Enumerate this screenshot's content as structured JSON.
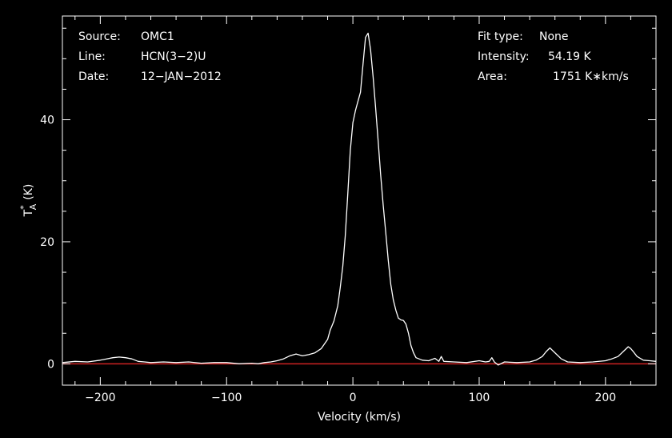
{
  "info_left": {
    "source_label": "Source:",
    "source_value": "OMC1",
    "line_label": "Line:",
    "line_value": "HCN(3−2)U",
    "date_label": "Date:",
    "date_value": "12−JAN−2012"
  },
  "info_right": {
    "fit_label": "Fit type:",
    "fit_value": "None",
    "intensity_label": "Intensity:",
    "intensity_value": "54.19 K",
    "area_label": "Area:",
    "area_value": "1751 K∗km/s"
  },
  "colors": {
    "background": "#000000",
    "foreground": "#ffffff",
    "baseline": "#cc2222"
  },
  "chart_data": {
    "type": "line",
    "xlabel": "Velocity (km/s)",
    "ylabel_main": "T",
    "ylabel_super": "*",
    "ylabel_sub": "A",
    "ylabel_unit": "(K)",
    "xlim": [
      -230,
      240
    ],
    "ylim": [
      -3.5,
      57
    ],
    "xticks": [
      -200,
      -100,
      0,
      100,
      200
    ],
    "xtick_labels": [
      "−200",
      "−100",
      "0",
      "100",
      "200"
    ],
    "yticks": [
      0,
      20,
      40
    ],
    "ytick_labels": [
      "0",
      "20",
      "40"
    ],
    "baseline_y": 0,
    "series": [
      {
        "x": [
          -230,
          -220,
          -210,
          -200,
          -195,
          -190,
          -185,
          -180,
          -175,
          -170,
          -165,
          -160,
          -150,
          -140,
          -130,
          -120,
          -110,
          -100,
          -90,
          -80,
          -75,
          -70,
          -65,
          -60,
          -55,
          -50,
          -45,
          -40,
          -35,
          -30,
          -25,
          -20,
          -18,
          -15,
          -12,
          -10,
          -8,
          -6,
          -4,
          -2,
          0,
          2,
          4,
          6,
          8,
          10,
          12,
          14,
          16,
          18,
          20,
          22,
          24,
          26,
          28,
          30,
          32,
          34,
          36,
          38,
          40,
          42,
          44,
          46,
          48,
          50,
          55,
          60,
          65,
          68,
          70,
          72,
          80,
          90,
          100,
          105,
          108,
          110,
          112,
          115,
          120,
          130,
          140,
          145,
          150,
          153,
          156,
          160,
          165,
          170,
          180,
          190,
          200,
          205,
          210,
          215,
          218,
          220,
          222,
          225,
          230,
          235,
          240
        ],
        "y": [
          0.2,
          0.4,
          0.3,
          0.6,
          0.8,
          1.0,
          1.1,
          1.0,
          0.8,
          0.4,
          0.3,
          0.2,
          0.3,
          0.2,
          0.3,
          0.1,
          0.2,
          0.2,
          0.0,
          0.1,
          0.0,
          0.2,
          0.3,
          0.5,
          0.8,
          1.3,
          1.6,
          1.3,
          1.5,
          1.8,
          2.5,
          4.0,
          5.5,
          7.0,
          9.5,
          12.5,
          16.0,
          21.0,
          28.0,
          35.0,
          39.5,
          41.5,
          43.0,
          44.5,
          49.0,
          53.5,
          54.19,
          51.5,
          47.0,
          42.0,
          36.5,
          31.0,
          26.0,
          21.5,
          17.0,
          13.0,
          10.5,
          8.8,
          7.5,
          7.2,
          7.1,
          6.5,
          5.0,
          3.0,
          1.8,
          1.0,
          0.6,
          0.5,
          0.9,
          0.4,
          1.2,
          0.4,
          0.3,
          0.2,
          0.5,
          0.3,
          0.4,
          1.0,
          0.3,
          -0.2,
          0.3,
          0.2,
          0.3,
          0.6,
          1.2,
          2.0,
          2.6,
          1.8,
          0.8,
          0.3,
          0.2,
          0.3,
          0.5,
          0.8,
          1.2,
          2.2,
          2.8,
          2.5,
          2.0,
          1.2,
          0.6,
          0.5,
          0.4
        ]
      }
    ]
  }
}
